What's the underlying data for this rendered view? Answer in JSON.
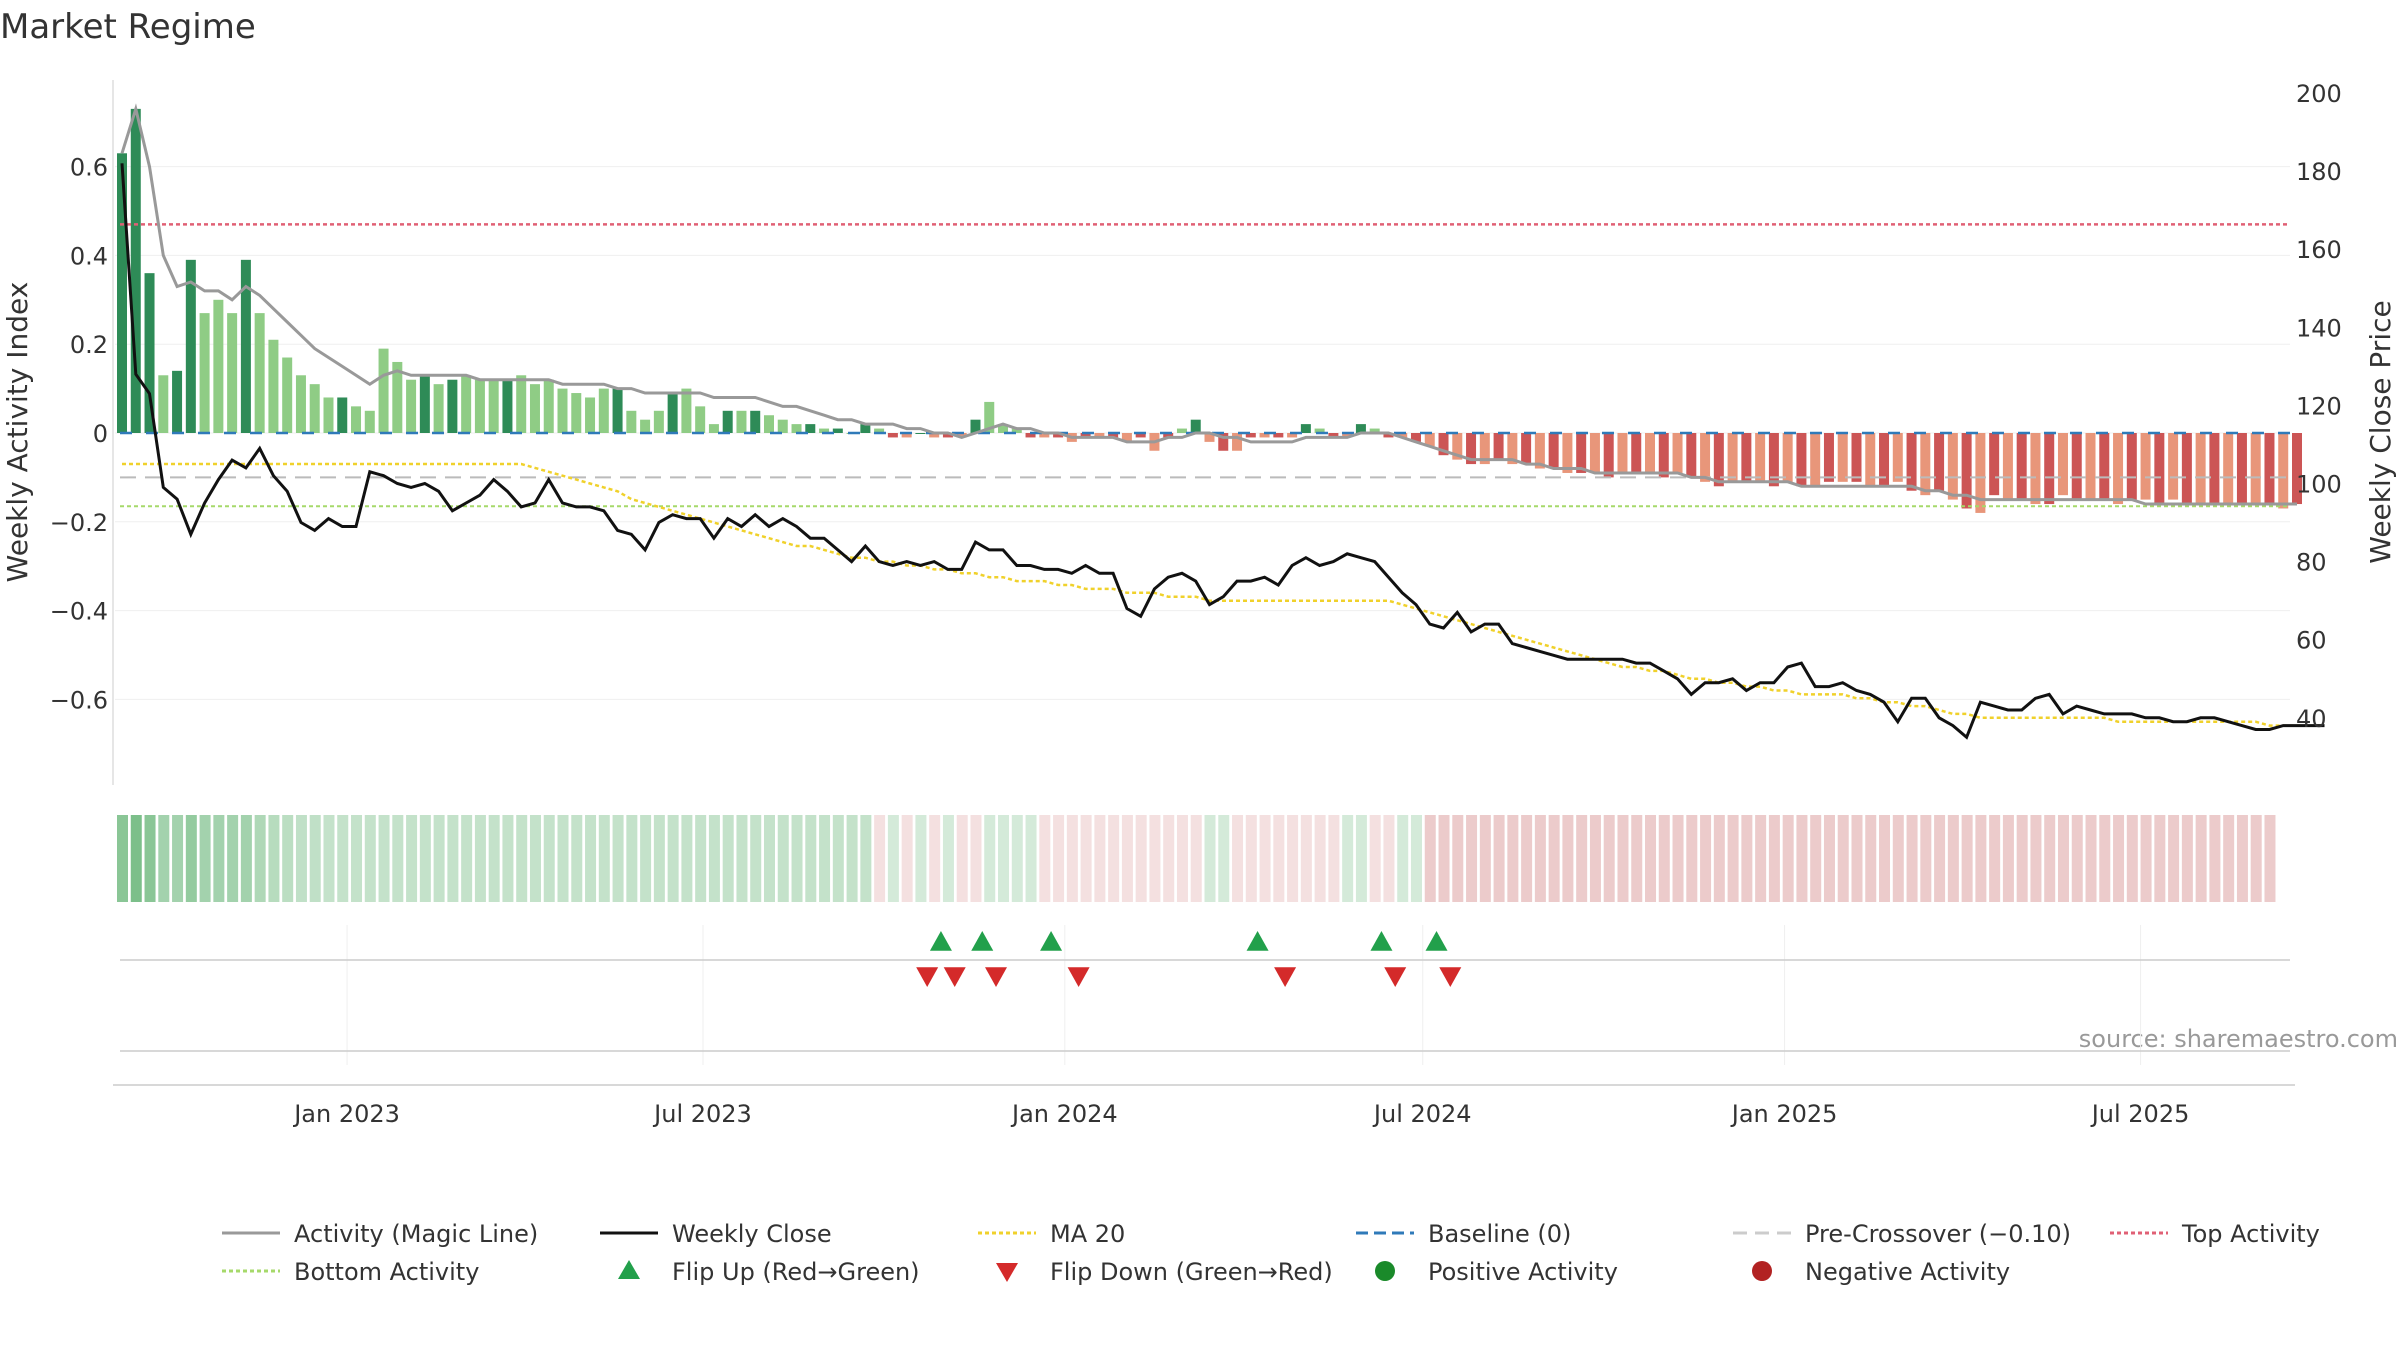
{
  "title": "Market Regime",
  "source": "source: sharemaestro.com",
  "chart_data": {
    "type": "bar",
    "x_start": "2022-09-05",
    "x_interval_days": 7,
    "x_range": [
      "2022-09-05",
      "2025-09-15"
    ],
    "x_ticks": [
      "Jan 2023",
      "Jul 2023",
      "Jan 2024",
      "Jul 2024",
      "Jan 2025",
      "Jul 2025"
    ],
    "x_tick_dates": [
      "2023-01-01",
      "2023-07-01",
      "2024-01-01",
      "2024-07-01",
      "2025-01-01",
      "2025-07-01"
    ],
    "y_left": {
      "label": "Weekly Activity Index",
      "ylim": [
        -0.8,
        0.8
      ],
      "ticks": [
        0.6,
        0.4,
        0.2,
        0,
        -0.2,
        -0.4,
        -0.6
      ],
      "tick_labels": [
        "0.6",
        "0.4",
        "0.2",
        "0",
        "−0.2",
        "−0.4",
        "−0.6"
      ]
    },
    "y_right": {
      "label": "Weekly Close Price",
      "ylim": [
        20,
        200
      ],
      "ticks": [
        200,
        180,
        160,
        140,
        120,
        100,
        80,
        60,
        40
      ],
      "tick_labels": [
        "200",
        "180",
        "160",
        "140",
        "120",
        "100",
        "80",
        "60",
        "40"
      ]
    },
    "reference_lines": {
      "top_activity": 0.47,
      "baseline": 0,
      "pre_crossover": -0.1,
      "bottom_activity": -0.165
    },
    "colors": {
      "activity_line": "#999999",
      "weekly_close": "#111111",
      "ma20": "#f0d12b",
      "baseline": "#2f7ab9",
      "pre_crossover": "#bbbbbb",
      "top_activity": "#e06075",
      "bottom_activity": "#a6d96a",
      "pos_strong": "#2e8b57",
      "pos_light": "#8fcc85",
      "neg_strong": "#cc5555",
      "neg_light": "#e8967a",
      "flip_up": "#22a04b",
      "flip_down": "#d42a2a",
      "positive_dot": "#1a8a2a",
      "negative_dot": "#b22222"
    },
    "series": [
      {
        "name": "Weekly Activity Index",
        "values": [
          0.63,
          0.73,
          0.36,
          0.13,
          0.14,
          0.39,
          0.27,
          0.3,
          0.27,
          0.39,
          0.27,
          0.21,
          0.17,
          0.13,
          0.11,
          0.08,
          0.08,
          0.06,
          0.05,
          0.19,
          0.16,
          0.12,
          0.13,
          0.11,
          0.12,
          0.13,
          0.12,
          0.12,
          0.12,
          0.13,
          0.11,
          0.12,
          0.1,
          0.09,
          0.08,
          0.1,
          0.1,
          0.05,
          0.03,
          0.05,
          0.09,
          0.1,
          0.06,
          0.02,
          0.05,
          0.05,
          0.05,
          0.04,
          0.03,
          0.02,
          0.02,
          0.01,
          0.01,
          0.0,
          0.02,
          0.01,
          -0.01,
          -0.01,
          0.0,
          -0.01,
          -0.01,
          -0.01,
          0.03,
          0.07,
          0.02,
          0.01,
          -0.01,
          -0.01,
          -0.01,
          -0.02,
          -0.01,
          -0.01,
          -0.01,
          -0.02,
          -0.01,
          -0.04,
          -0.01,
          0.01,
          0.03,
          -0.02,
          -0.04,
          -0.04,
          -0.01,
          -0.01,
          -0.01,
          -0.01,
          0.02,
          0.01,
          -0.01,
          -0.01,
          0.02,
          0.01,
          -0.01,
          -0.01,
          -0.02,
          -0.03,
          -0.05,
          -0.06,
          -0.07,
          -0.07,
          -0.06,
          -0.07,
          -0.07,
          -0.08,
          -0.08,
          -0.09,
          -0.09,
          -0.09,
          -0.1,
          -0.09,
          -0.09,
          -0.09,
          -0.1,
          -0.09,
          -0.1,
          -0.11,
          -0.12,
          -0.11,
          -0.11,
          -0.11,
          -0.12,
          -0.11,
          -0.12,
          -0.12,
          -0.11,
          -0.11,
          -0.11,
          -0.12,
          -0.12,
          -0.11,
          -0.13,
          -0.14,
          -0.13,
          -0.15,
          -0.17,
          -0.18,
          -0.14,
          -0.15,
          -0.15,
          -0.16,
          -0.16,
          -0.14,
          -0.15,
          -0.15,
          -0.15,
          -0.16,
          -0.15,
          -0.15,
          -0.16,
          -0.15,
          -0.16,
          -0.16,
          -0.16,
          -0.16,
          -0.16,
          -0.16,
          -0.16,
          -0.17,
          -0.16
        ]
      },
      {
        "name": "Activity (Magic Line)",
        "values": [
          0.63,
          0.73,
          0.6,
          0.4,
          0.33,
          0.34,
          0.32,
          0.32,
          0.3,
          0.33,
          0.31,
          0.28,
          0.25,
          0.22,
          0.19,
          0.17,
          0.15,
          0.13,
          0.11,
          0.13,
          0.14,
          0.13,
          0.13,
          0.13,
          0.13,
          0.13,
          0.12,
          0.12,
          0.12,
          0.12,
          0.12,
          0.12,
          0.11,
          0.11,
          0.11,
          0.11,
          0.1,
          0.1,
          0.09,
          0.09,
          0.09,
          0.09,
          0.09,
          0.08,
          0.08,
          0.08,
          0.08,
          0.07,
          0.06,
          0.06,
          0.05,
          0.04,
          0.03,
          0.03,
          0.02,
          0.02,
          0.02,
          0.01,
          0.01,
          0.0,
          0.0,
          -0.01,
          0.0,
          0.01,
          0.02,
          0.01,
          0.01,
          0.0,
          0.0,
          -0.01,
          -0.01,
          -0.01,
          -0.01,
          -0.02,
          -0.02,
          -0.02,
          -0.01,
          -0.01,
          0.0,
          0.0,
          -0.01,
          -0.01,
          -0.02,
          -0.02,
          -0.02,
          -0.02,
          -0.01,
          -0.01,
          -0.01,
          -0.01,
          0.0,
          0.0,
          0.0,
          -0.01,
          -0.02,
          -0.03,
          -0.04,
          -0.05,
          -0.06,
          -0.06,
          -0.06,
          -0.06,
          -0.07,
          -0.07,
          -0.08,
          -0.08,
          -0.08,
          -0.09,
          -0.09,
          -0.09,
          -0.09,
          -0.09,
          -0.09,
          -0.09,
          -0.1,
          -0.1,
          -0.11,
          -0.11,
          -0.11,
          -0.11,
          -0.11,
          -0.11,
          -0.12,
          -0.12,
          -0.12,
          -0.12,
          -0.12,
          -0.12,
          -0.12,
          -0.12,
          -0.12,
          -0.13,
          -0.13,
          -0.14,
          -0.14,
          -0.15,
          -0.15,
          -0.15,
          -0.15,
          -0.15,
          -0.15,
          -0.15,
          -0.15,
          -0.15,
          -0.15,
          -0.15,
          -0.15,
          -0.16,
          -0.16,
          -0.16,
          -0.16,
          -0.16,
          -0.16,
          -0.16,
          -0.16,
          -0.16,
          -0.16,
          -0.16,
          -0.16
        ]
      },
      {
        "name": "Weekly Close",
        "values": [
          182,
          128,
          123,
          99,
          96,
          87,
          95,
          101,
          106,
          104,
          109,
          102,
          98,
          90,
          88,
          91,
          89,
          89,
          103,
          102,
          100,
          99,
          100,
          98,
          93,
          95,
          97,
          101,
          98,
          94,
          95,
          101,
          95,
          94,
          94,
          93,
          88,
          87,
          83,
          90,
          92,
          91,
          91,
          86,
          91,
          89,
          92,
          89,
          91,
          89,
          86,
          86,
          83,
          80,
          84,
          80,
          79,
          80,
          79,
          80,
          78,
          78,
          85,
          83,
          83,
          79,
          79,
          78,
          78,
          77,
          79,
          77,
          77,
          68,
          66,
          73,
          76,
          77,
          75,
          69,
          71,
          75,
          75,
          76,
          74,
          79,
          81,
          79,
          80,
          82,
          81,
          80,
          76,
          72,
          69,
          64,
          63,
          67,
          62,
          64,
          64,
          59,
          58,
          57,
          56,
          55,
          55,
          55,
          55,
          55,
          54,
          54,
          52,
          50,
          46,
          49,
          49,
          50,
          47,
          49,
          49,
          53,
          54,
          48,
          48,
          49,
          47,
          46,
          44,
          39,
          45,
          45,
          40,
          38,
          35,
          44,
          43,
          42,
          42,
          45,
          46,
          41,
          43,
          42,
          41,
          41,
          41,
          40,
          40,
          39,
          39,
          40,
          40,
          39,
          38,
          37,
          37,
          38,
          38,
          38,
          38
        ]
      },
      {
        "name": "MA 20",
        "values": [
          105,
          105,
          105,
          105,
          105,
          105,
          105,
          105,
          105,
          105,
          105,
          105,
          105,
          105,
          105,
          105,
          105,
          105,
          105,
          105,
          105,
          105,
          105,
          105,
          105,
          105,
          105,
          105,
          105,
          105,
          104,
          103,
          102,
          101,
          100,
          99,
          98,
          96,
          95,
          94,
          93,
          92,
          91,
          90,
          89,
          88,
          87,
          86,
          85,
          84,
          84,
          83,
          82,
          81,
          81,
          80,
          80,
          79,
          79,
          78,
          78,
          77,
          77,
          76,
          76,
          75,
          75,
          75,
          74,
          74,
          73,
          73,
          73,
          72,
          72,
          72,
          71,
          71,
          71,
          70,
          70,
          70,
          70,
          70,
          70,
          70,
          70,
          70,
          70,
          70,
          70,
          70,
          70,
          69,
          68,
          67,
          66,
          65,
          64,
          63,
          62,
          61,
          60,
          59,
          58,
          57,
          56,
          55,
          54,
          53,
          53,
          52,
          52,
          51,
          50,
          50,
          49,
          49,
          48,
          48,
          47,
          47,
          46,
          46,
          46,
          46,
          45,
          45,
          44,
          44,
          43,
          43,
          42,
          41,
          41,
          40,
          40,
          40,
          40,
          40,
          40,
          40,
          40,
          40,
          40,
          39,
          39,
          39,
          39,
          39,
          39,
          39,
          39,
          39,
          39,
          39,
          38,
          38,
          38,
          38,
          38
        ]
      }
    ],
    "regime_strip": {
      "levels": [
        0.55,
        0.62,
        0.55,
        0.42,
        0.42,
        0.5,
        0.42,
        0.42,
        0.42,
        0.42,
        0.36,
        0.32,
        0.3,
        0.27,
        0.27,
        0.25,
        0.25,
        0.25,
        0.25,
        0.25,
        0.25,
        0.25,
        0.25,
        0.25,
        0.25,
        0.25,
        0.25,
        0.25,
        0.25,
        0.25,
        0.25,
        0.25,
        0.25,
        0.25,
        0.25,
        0.25,
        0.25,
        0.25,
        0.25,
        0.25,
        0.25,
        0.25,
        0.25,
        0.25,
        0.25,
        0.25,
        0.25,
        0.25,
        0.25,
        0.25,
        0.25,
        0.25,
        0.25,
        0.25,
        0.25,
        -0.15,
        0.2,
        -0.15,
        0.2,
        -0.15,
        0.2,
        -0.15,
        -0.15,
        0.2,
        0.2,
        0.2,
        0.2,
        -0.15,
        -0.15,
        -0.15,
        -0.15,
        -0.15,
        -0.15,
        -0.15,
        -0.15,
        -0.15,
        -0.15,
        -0.15,
        -0.15,
        0.2,
        0.2,
        -0.15,
        -0.15,
        -0.15,
        -0.15,
        -0.15,
        -0.15,
        -0.15,
        -0.15,
        0.2,
        0.2,
        -0.15,
        -0.15,
        0.2,
        0.2,
        -0.2,
        -0.2,
        -0.2,
        -0.2,
        -0.2,
        -0.2,
        -0.2,
        -0.2,
        -0.2,
        -0.2,
        -0.2,
        -0.2,
        -0.2,
        -0.2,
        -0.2,
        -0.2,
        -0.2,
        -0.2,
        -0.2,
        -0.2,
        -0.2,
        -0.2,
        -0.2,
        -0.2,
        -0.2,
        -0.2,
        -0.2,
        -0.2,
        -0.2,
        -0.2,
        -0.2,
        -0.2,
        -0.2,
        -0.2,
        -0.2,
        -0.2,
        -0.2,
        -0.2,
        -0.2,
        -0.2,
        -0.2,
        -0.2,
        -0.2,
        -0.2,
        -0.2,
        -0.2,
        -0.2,
        -0.2,
        -0.2,
        -0.2,
        -0.2,
        -0.2,
        -0.2,
        -0.2,
        -0.2,
        -0.2,
        -0.2,
        -0.2,
        -0.2,
        -0.2,
        -0.2,
        -0.2
      ]
    },
    "flip_up_dates": [
      "2023-10-30",
      "2023-11-20",
      "2023-12-25",
      "2024-04-08",
      "2024-06-10",
      "2024-07-08"
    ],
    "flip_down_dates": [
      "2023-10-23",
      "2023-11-06",
      "2023-11-27",
      "2024-01-08",
      "2024-04-22",
      "2024-06-17",
      "2024-07-15"
    ]
  },
  "legend": [
    {
      "label": "Activity (Magic Line)",
      "kind": "line",
      "color": "#999999",
      "dash": ""
    },
    {
      "label": "Weekly Close",
      "kind": "line",
      "color": "#111111",
      "dash": ""
    },
    {
      "label": "MA 20",
      "kind": "line",
      "color": "#f0d12b",
      "dash": "4,3"
    },
    {
      "label": "Baseline (0)",
      "kind": "line",
      "color": "#2f7ab9",
      "dash": "12,6"
    },
    {
      "label": "Pre-Crossover (−0.10)",
      "kind": "line",
      "color": "#cccccc",
      "dash": "14,8"
    },
    {
      "label": "Top Activity",
      "kind": "line",
      "color": "#e06075",
      "dash": "4,3"
    },
    {
      "label": "Bottom Activity",
      "kind": "line",
      "color": "#a6d96a",
      "dash": "4,3"
    },
    {
      "label": "Flip Up (Red→Green)",
      "kind": "tri-up",
      "color": "#22a04b"
    },
    {
      "label": "Flip Down (Green→Red)",
      "kind": "tri-down",
      "color": "#d42a2a"
    },
    {
      "label": "Positive Activity",
      "kind": "dot",
      "color": "#1a8a2a"
    },
    {
      "label": "Negative Activity",
      "kind": "dot",
      "color": "#b22222"
    }
  ]
}
